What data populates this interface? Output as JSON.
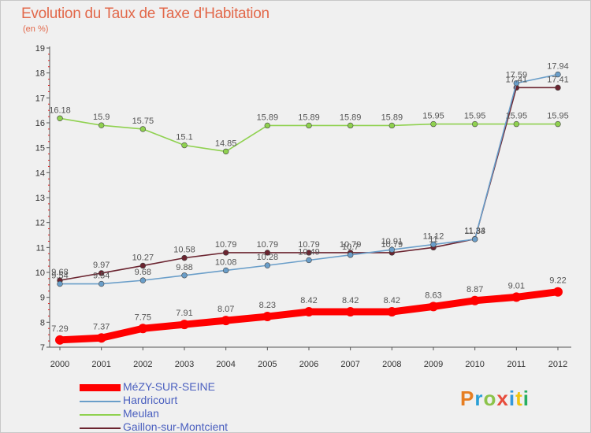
{
  "header": {
    "title": "Evolution du Taux de Taxe d'Habitation",
    "subtitle": "(en %)"
  },
  "logo": {
    "text": "Proxiti",
    "colors": [
      "#e67e22",
      "#2a9fd6",
      "#8bc34a",
      "#e74c3c",
      "#3498db",
      "#f1c40f",
      "#27ae60"
    ]
  },
  "chart_data": {
    "type": "line",
    "title": "Evolution du Taux de Taxe d'Habitation",
    "ylabel": "(en %)",
    "xlabel": "",
    "x": [
      "2000",
      "2001",
      "2002",
      "2003",
      "2004",
      "2005",
      "2006",
      "2007",
      "2008",
      "2009",
      "2010",
      "2011",
      "2012"
    ],
    "ylim": [
      7,
      19
    ],
    "yticks": [
      "7",
      "8",
      "9",
      "10",
      "11",
      "12",
      "13",
      "14",
      "15",
      "16",
      "17",
      "18",
      "19"
    ],
    "grid": false,
    "legend_position": "bottom-left",
    "series": [
      {
        "name": "MéZY-SUR-SEINE",
        "color": "#ff0000",
        "values": [
          7.29,
          7.37,
          7.75,
          7.91,
          8.07,
          8.23,
          8.42,
          8.42,
          8.42,
          8.63,
          8.87,
          9.01,
          9.22
        ],
        "labels": [
          "7.29",
          "7.37",
          "7.75",
          "7.91",
          "8.07",
          "8.23",
          "8.42",
          "8.42",
          "8.42",
          "8.63",
          "8.87",
          "9.01",
          "9.22"
        ]
      },
      {
        "name": "Hardricourt",
        "color": "#6a9ec9",
        "values": [
          9.54,
          9.54,
          9.68,
          9.88,
          10.08,
          10.28,
          10.49,
          10.7,
          10.91,
          11.12,
          11.33,
          17.59,
          17.94
        ],
        "labels": [
          "9.54",
          "9.54",
          "9.68",
          "9.88",
          "10.08",
          "10.28",
          "10.49",
          "10.7",
          "10.91",
          "11.12",
          "11.33",
          "17.59",
          "17.94"
        ]
      },
      {
        "name": "Meulan",
        "color": "#8fd14f",
        "values": [
          16.18,
          15.9,
          15.75,
          15.1,
          14.85,
          15.89,
          15.89,
          15.89,
          15.89,
          15.95,
          15.95,
          15.95,
          15.95
        ],
        "labels": [
          "16.18",
          "15.9",
          "15.75",
          "15.1",
          "14.85",
          "15.89",
          "15.89",
          "15.89",
          "15.89",
          "15.95",
          "15.95",
          "15.95",
          "15.95"
        ]
      },
      {
        "name": "Gaillon-sur-Montcient",
        "color": "#6b2430",
        "values": [
          9.68,
          9.97,
          10.27,
          10.58,
          10.79,
          10.79,
          10.79,
          10.79,
          10.79,
          11.0,
          11.34,
          17.41,
          17.41
        ],
        "labels": [
          "9.68",
          "9.97",
          "10.27",
          "10.58",
          "10.79",
          "10.79",
          "10.79",
          "10.79",
          "10.79",
          "11",
          "11.34",
          "17.41",
          "17.41"
        ]
      }
    ]
  }
}
